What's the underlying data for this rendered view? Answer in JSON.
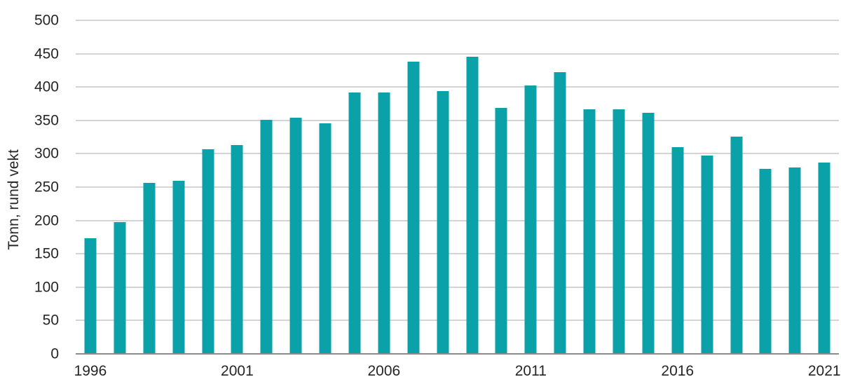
{
  "chart_data": {
    "type": "bar",
    "title": "",
    "xlabel": "",
    "ylabel": "Tonn, rund vekt",
    "ylim": [
      0,
      500
    ],
    "yticks": [
      0,
      50,
      100,
      150,
      200,
      250,
      300,
      350,
      400,
      450,
      500
    ],
    "grid": "horizontal",
    "legend_position": "none",
    "xtick_every": 5,
    "xtick_labels": [
      "1996",
      "2001",
      "2006",
      "2011",
      "2016",
      "2021"
    ],
    "categories": [
      "1996",
      "1997",
      "1998",
      "1999",
      "2000",
      "2001",
      "2002",
      "2003",
      "2004",
      "2005",
      "2006",
      "2007",
      "2008",
      "2009",
      "2010",
      "2011",
      "2012",
      "2013",
      "2014",
      "2015",
      "2016",
      "2017",
      "2018",
      "2019",
      "2020",
      "2021"
    ],
    "values": [
      173,
      197,
      256,
      259,
      307,
      313,
      351,
      354,
      346,
      392,
      392,
      438,
      394,
      445,
      369,
      402,
      422,
      367,
      367,
      361,
      310,
      297,
      326,
      277,
      279,
      287
    ],
    "colors": {
      "bar": "#0aa1a8",
      "gridline": "#a9a9a9",
      "axis_line": "#8c8c8c",
      "text": "#262626",
      "background": "#ffffff"
    }
  }
}
